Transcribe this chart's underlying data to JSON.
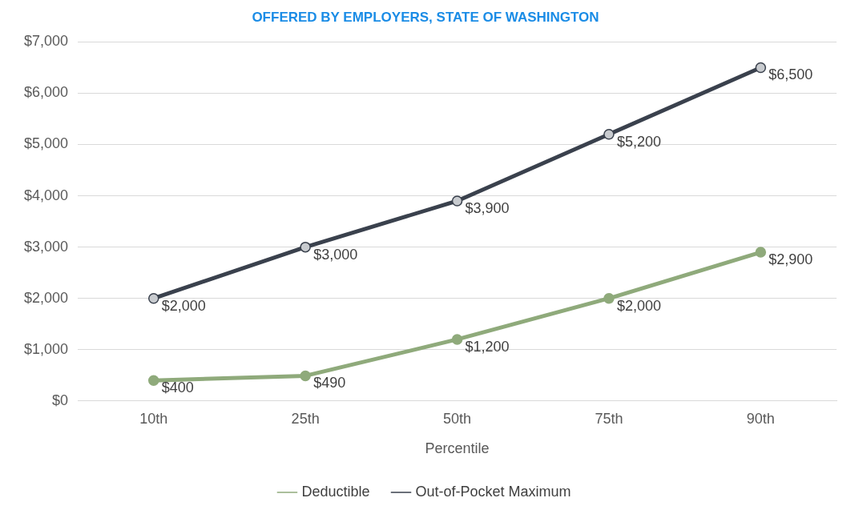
{
  "chart_data": {
    "type": "line",
    "title": "OFFERED BY EMPLOYERS, STATE OF WASHINGTON",
    "xlabel": "Percentile",
    "categories": [
      "10th",
      "25th",
      "50th",
      "75th",
      "90th"
    ],
    "series": [
      {
        "name": "Deductible",
        "color": "#8faa7b",
        "values": [
          400,
          490,
          1200,
          2000,
          2900
        ]
      },
      {
        "name": "Out-of-Pocket Maximum",
        "color": "#3a414d",
        "values": [
          2000,
          3000,
          3900,
          5200,
          6500
        ]
      }
    ],
    "ylim": [
      0,
      7000
    ],
    "yticks": [
      {
        "value": 0,
        "label": "$0"
      },
      {
        "value": 1000,
        "label": "$1,000"
      },
      {
        "value": 2000,
        "label": "$2,000"
      },
      {
        "value": 3000,
        "label": "$3,000"
      },
      {
        "value": 4000,
        "label": "$4,000"
      },
      {
        "value": 5000,
        "label": "$5,000"
      },
      {
        "value": 6000,
        "label": "$6,000"
      },
      {
        "value": 7000,
        "label": "$7,000"
      }
    ],
    "value_labels": [
      [
        "$400",
        "$490",
        "$1,200",
        "$2,000",
        "$2,900"
      ],
      [
        "$2,000",
        "$3,000",
        "$3,900",
        "$5,200",
        "$6,500"
      ]
    ],
    "grid": "y",
    "legend": "bottom",
    "marker": "circle",
    "line_style": "solid"
  }
}
